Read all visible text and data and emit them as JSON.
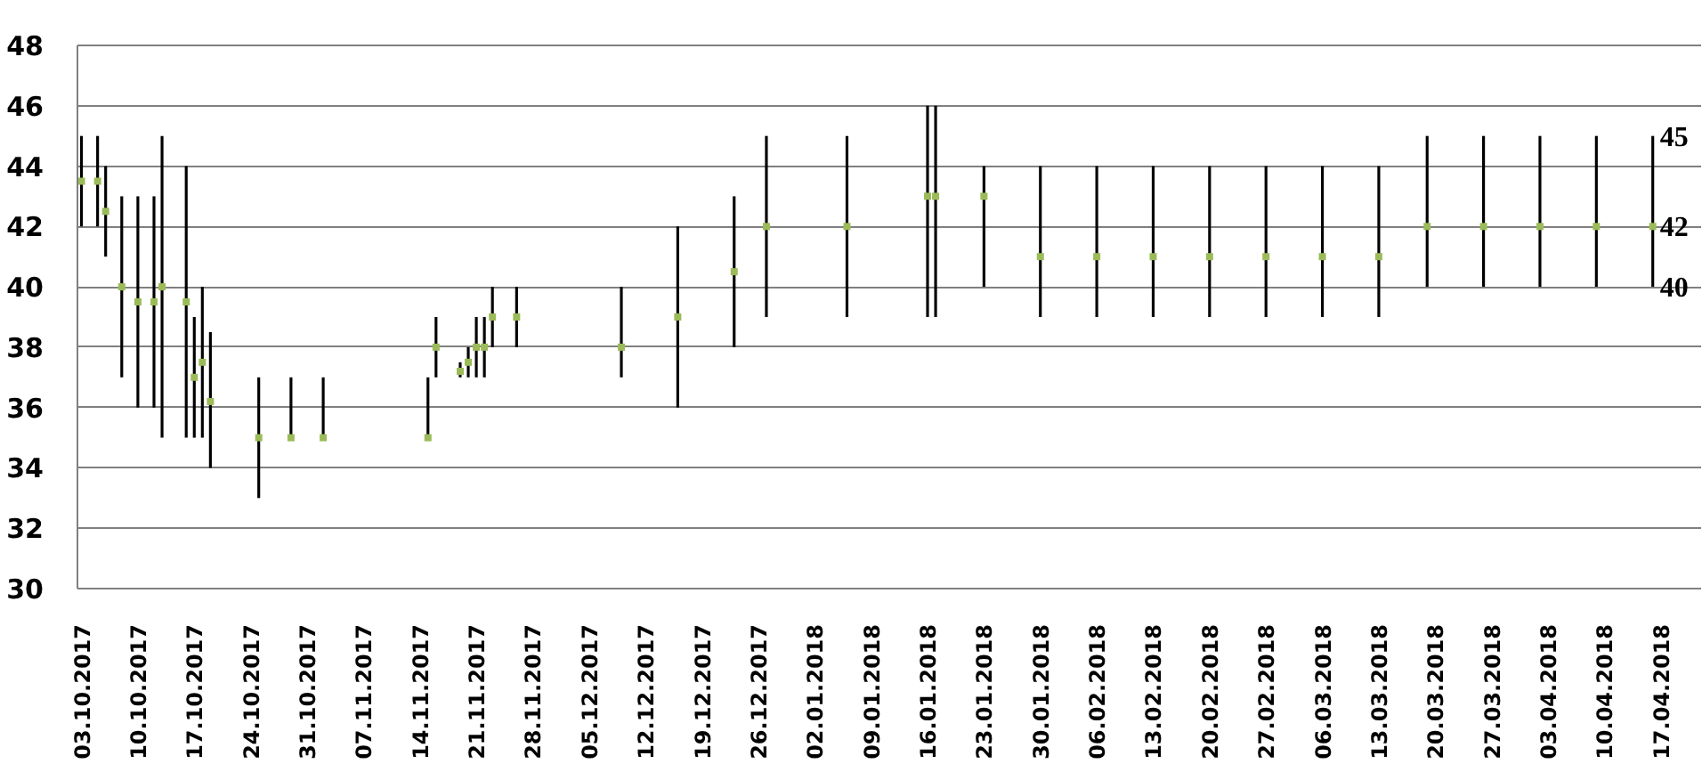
{
  "chart_data": {
    "type": "bar",
    "grid": "y",
    "x": [
      "2017-10-03",
      "2017-10-05",
      "2017-10-06",
      "2017-10-08",
      "2017-10-10",
      "2017-10-12",
      "2017-10-13",
      "2017-10-16",
      "2017-10-17",
      "2017-10-18",
      "2017-10-19",
      "2017-10-25",
      "2017-10-29",
      "2017-11-02",
      "2017-11-15",
      "2017-11-16",
      "2017-11-19",
      "2017-11-20",
      "2017-11-21",
      "2017-11-22",
      "2017-11-23",
      "2017-11-26",
      "2017-12-09",
      "2017-12-16",
      "2017-12-23",
      "2017-12-27",
      "2018-01-06",
      "2018-01-16",
      "2018-01-17",
      "2018-01-23",
      "2018-01-30",
      "2018-02-06",
      "2018-02-13",
      "2018-02-20",
      "2018-02-27",
      "2018-03-06",
      "2018-03-13",
      "2018-03-19",
      "2018-03-26",
      "2018-04-02",
      "2018-04-09",
      "2018-04-16"
    ],
    "series": [
      {
        "color": "#000000",
        "base": [
          42,
          42,
          41,
          37,
          36,
          36,
          35,
          35,
          35,
          35,
          34,
          33,
          35,
          35,
          35,
          37,
          37,
          37,
          37,
          37,
          38,
          38,
          37,
          36,
          38,
          39,
          39,
          39,
          39,
          40,
          39,
          39,
          39,
          39,
          39,
          39,
          39,
          40,
          40,
          40,
          40,
          40
        ],
        "values": [
          3,
          3,
          3,
          6,
          7,
          7,
          10,
          9,
          4,
          5,
          4.5,
          4,
          2,
          2,
          2,
          2,
          0.5,
          1,
          2,
          2,
          2,
          2,
          3,
          6,
          5,
          6,
          6,
          7,
          7,
          4,
          5,
          5,
          5,
          5,
          5,
          5,
          5,
          5,
          5,
          5,
          5,
          5
        ]
      },
      {
        "type": "scatter",
        "color": "#9bbb59",
        "marker": "square",
        "values": [
          43.5,
          43.5,
          42.5,
          40,
          39.5,
          39.5,
          40,
          39.5,
          37,
          37.5,
          36.2,
          35,
          35,
          35,
          35,
          38,
          37.2,
          37.5,
          38,
          38,
          39,
          39,
          38,
          39,
          40.5,
          42,
          42,
          43,
          43,
          43,
          41,
          41,
          41,
          41,
          41,
          41,
          41,
          42,
          42,
          42,
          42,
          42
        ]
      }
    ],
    "xlim": [
      "2017-10-02T12:00",
      "2018-04-22"
    ],
    "xticks": [
      {
        "value": "2017-10-03",
        "label": "03.10.2017"
      },
      {
        "value": "2017-10-10",
        "label": "10.10.2017"
      },
      {
        "value": "2017-10-17",
        "label": "17.10.2017"
      },
      {
        "value": "2017-10-24",
        "label": "24.10.2017"
      },
      {
        "value": "2017-10-31",
        "label": "31.10.2017"
      },
      {
        "value": "2017-11-07",
        "label": "07.11.2017"
      },
      {
        "value": "2017-11-14",
        "label": "14.11.2017"
      },
      {
        "value": "2017-11-21",
        "label": "21.11.2017"
      },
      {
        "value": "2017-11-28",
        "label": "28.11.2017"
      },
      {
        "value": "2017-12-05",
        "label": "05.12.2017"
      },
      {
        "value": "2017-12-12",
        "label": "12.12.2017"
      },
      {
        "value": "2017-12-19",
        "label": "19.12.2017"
      },
      {
        "value": "2017-12-26",
        "label": "26.12.2017"
      },
      {
        "value": "2018-01-02",
        "label": "02.01.2018"
      },
      {
        "value": "2018-01-09",
        "label": "09.01.2018"
      },
      {
        "value": "2018-01-16",
        "label": "16.01.2018"
      },
      {
        "value": "2018-01-23",
        "label": "23.01.2018"
      },
      {
        "value": "2018-01-30",
        "label": "30.01.2018"
      },
      {
        "value": "2018-02-06",
        "label": "06.02.2018"
      },
      {
        "value": "2018-02-13",
        "label": "13.02.2018"
      },
      {
        "value": "2018-02-20",
        "label": "20.02.2018"
      },
      {
        "value": "2018-02-27",
        "label": "27.02.2018"
      },
      {
        "value": "2018-03-06",
        "label": "06.03.2018"
      },
      {
        "value": "2018-03-13",
        "label": "13.03.2018"
      },
      {
        "value": "2018-03-20",
        "label": "20.03.2018"
      },
      {
        "value": "2018-03-27",
        "label": "27.03.2018"
      },
      {
        "value": "2018-04-03",
        "label": "03.04.2018"
      },
      {
        "value": "2018-04-10",
        "label": "10.04.2018"
      },
      {
        "value": "2018-04-17",
        "label": "17.04.2018"
      }
    ],
    "ylim": [
      30,
      48
    ],
    "yticks": [
      30,
      32,
      34,
      36,
      38,
      40,
      42,
      44,
      46,
      48
    ],
    "annotations": [
      {
        "text": "45",
        "x": "2018-04-16",
        "y": 45
      },
      {
        "text": "42",
        "x": "2018-04-16",
        "y": 42
      },
      {
        "text": "40",
        "x": "2018-04-16",
        "y": 40
      }
    ]
  }
}
